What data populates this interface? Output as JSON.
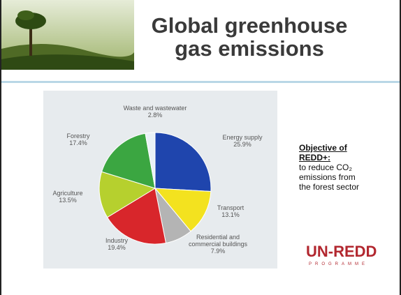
{
  "slide": {
    "title": "Global greenhouse gas emissions",
    "objective_heading": "Objective of REDD+:",
    "objective_text": "to reduce CO₂ emissions from the forest sector",
    "logo": "UN-REDD",
    "logo_sub": "PROGRAMME"
  },
  "chart_data": {
    "type": "pie",
    "categories": [
      "Energy supply",
      "Transport",
      "Residential and commercial buildings",
      "Industry",
      "Agriculture",
      "Forestry",
      "Waste and wastewater"
    ],
    "values": [
      25.9,
      13.1,
      7.9,
      19.4,
      13.5,
      17.4,
      2.8
    ],
    "value_labels": [
      "25.9%",
      "13.1%",
      "7.9%",
      "19.4%",
      "13.5%",
      "17.4%",
      "2.8%"
    ],
    "colors": [
      "#1f45ad",
      "#f3e21f",
      "#b4b4b4",
      "#d8262b",
      "#b6d02e",
      "#3ba641",
      "#e9f1f6"
    ]
  }
}
